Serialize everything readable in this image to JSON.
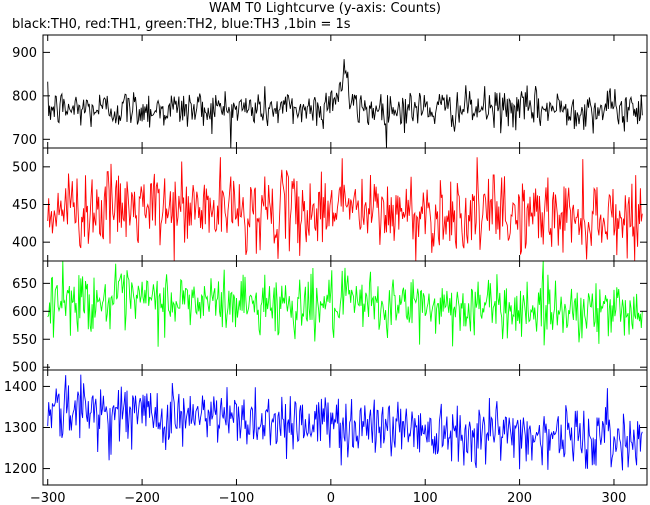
{
  "chart_data": {
    "type": "line",
    "title": "WAM T0 Lightcurve (y-axis: Counts)",
    "subtitle": "black:TH0, red:TH1, green:TH2, blue:TH3 ,1bin = 1s",
    "xlim": [
      -305,
      335
    ],
    "x_ticks": [
      -300,
      -200,
      -100,
      0,
      100,
      200,
      300
    ],
    "x_tick_labels": [
      "−300",
      "−200",
      "−100",
      "0",
      "100",
      "200",
      "300"
    ],
    "x_step": 1,
    "panels": [
      {
        "name": "TH0",
        "color": "#000000",
        "ylim": [
          680,
          940
        ],
        "y_ticks": [
          700,
          800,
          900
        ],
        "mean": 770,
        "noise": 25,
        "trend": 0,
        "burst": {
          "t": 15,
          "amp": 90,
          "width": 4
        },
        "burst2": {
          "t": 5,
          "amp": 35,
          "width": 8
        }
      },
      {
        "name": "TH1",
        "color": "#ff0000",
        "ylim": [
          375,
          525
        ],
        "y_ticks": [
          400,
          450,
          500
        ],
        "mean": 440,
        "noise": 28,
        "trend": -0.02,
        "burst": {
          "t": 12,
          "amp": 25,
          "width": 10
        }
      },
      {
        "name": "TH2",
        "color": "#00ff00",
        "ylim": [
          495,
          690
        ],
        "y_ticks": [
          500,
          550,
          600,
          650
        ],
        "mean": 612,
        "noise": 30,
        "trend": -0.03
      },
      {
        "name": "TH3",
        "color": "#0000ff",
        "ylim": [
          1160,
          1440
        ],
        "y_ticks": [
          1200,
          1300,
          1400
        ],
        "mean": 1310,
        "noise": 42,
        "trend": -0.12
      }
    ]
  }
}
